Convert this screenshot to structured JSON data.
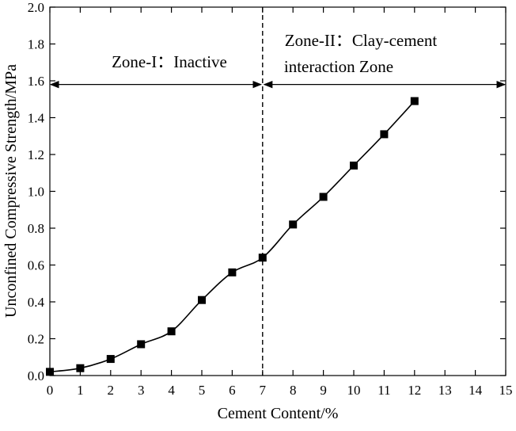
{
  "chart_data": {
    "type": "line",
    "title": "",
    "xlabel": "Cement Content/%",
    "ylabel": "Unconfined Compressive Strength/MPa",
    "xlim": [
      0,
      15
    ],
    "ylim": [
      0,
      2.0
    ],
    "xticks": [
      0,
      1,
      2,
      3,
      4,
      5,
      6,
      7,
      8,
      9,
      10,
      11,
      12,
      13,
      14,
      15
    ],
    "yticks": [
      0.0,
      0.2,
      0.4,
      0.6,
      0.8,
      1.0,
      1.2,
      1.4,
      1.6,
      1.8,
      2.0
    ],
    "ytick_labels": [
      "0.0",
      "0.2",
      "0.4",
      "0.6",
      "0.8",
      "1.0",
      "1.2",
      "1.4",
      "1.6",
      "1.8",
      "2.0"
    ],
    "grid": false,
    "legend": "none",
    "series": [
      {
        "x": [
          0,
          1,
          2,
          3,
          4,
          5,
          6,
          7,
          8,
          9,
          10,
          11,
          12
        ],
        "values": [
          0.02,
          0.04,
          0.09,
          0.17,
          0.24,
          0.41,
          0.56,
          0.64,
          0.82,
          0.97,
          1.14,
          1.31,
          1.49
        ],
        "marker": "square",
        "color": "#000000"
      }
    ],
    "annotations": {
      "divider_x": 7,
      "arrow_y": 1.58,
      "zone1": {
        "label": "Zone-I：Inactive",
        "x_range": [
          0,
          7
        ]
      },
      "zone2": {
        "label_line1": "Zone-II：Clay-cement",
        "label_line2": "interaction Zone",
        "x_range": [
          7,
          15
        ]
      }
    }
  }
}
